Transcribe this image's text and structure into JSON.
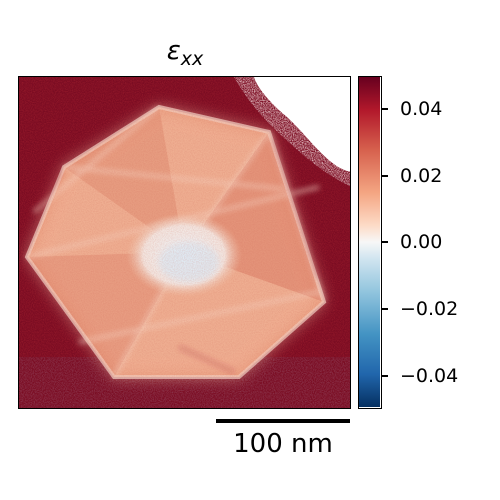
{
  "figure": {
    "title_symbol": "ε",
    "title_subscript": "xx",
    "colorbar_tick_labels": [
      "0.04",
      "0.02",
      "0.00",
      "−0.02",
      "−0.04"
    ],
    "colorbar_range": [
      -0.05,
      0.05
    ],
    "colormap": "RdBu_r",
    "colors": {
      "positive": "#67001f",
      "zero": "#f7f7f7",
      "negative": "#053061"
    },
    "scalebar_label": "100 nm"
  }
}
